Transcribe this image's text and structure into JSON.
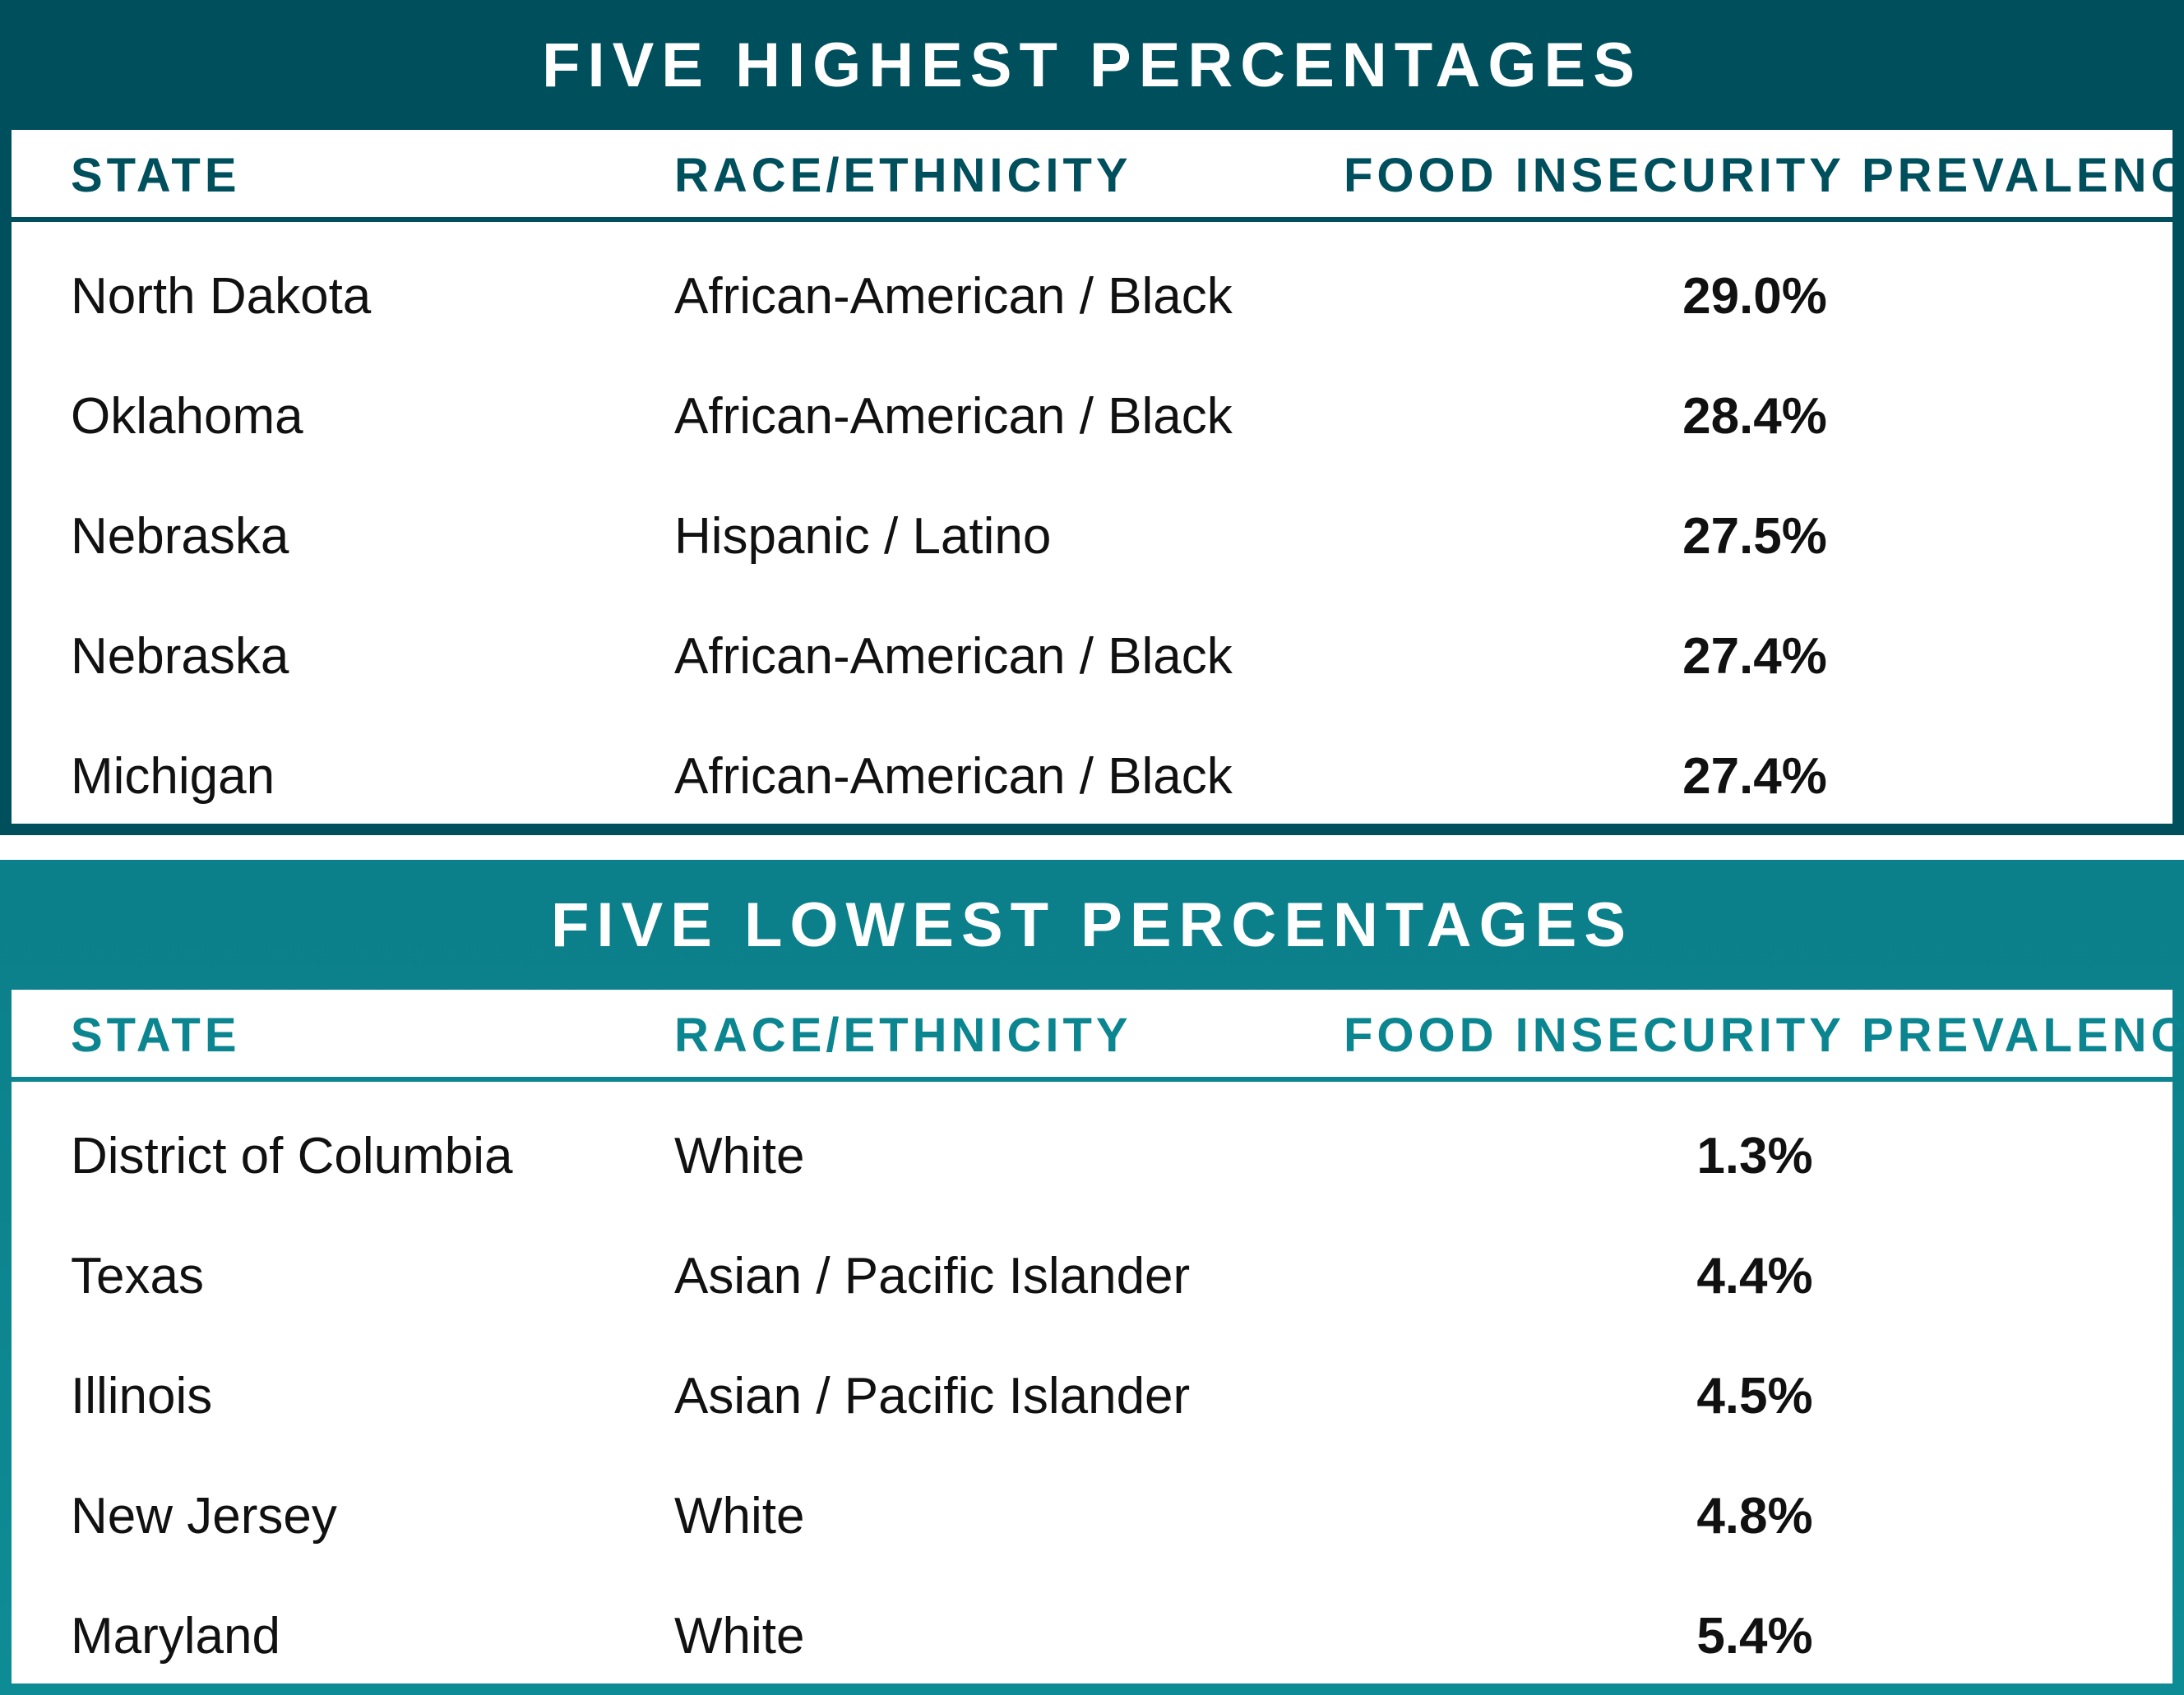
{
  "chart_data": [
    {
      "type": "table",
      "title": "FIVE HIGHEST PERCENTAGES",
      "columns": [
        "STATE",
        "RACE/ETHNICITY",
        "FOOD INSECURITY PREVALENCE"
      ],
      "rows": [
        {
          "state": "North Dakota",
          "race": "African-American / Black",
          "value": "29.0%"
        },
        {
          "state": "Oklahoma",
          "race": "African-American / Black",
          "value": "28.4%"
        },
        {
          "state": "Nebraska",
          "race": "Hispanic / Latino",
          "value": "27.5%"
        },
        {
          "state": "Nebraska",
          "race": "African-American / Black",
          "value": "27.4%"
        },
        {
          "state": "Michigan",
          "race": "African-American / Black",
          "value": "27.4%"
        }
      ]
    },
    {
      "type": "table",
      "title": "FIVE LOWEST PERCENTAGES",
      "columns": [
        "STATE",
        "RACE/ETHNICITY",
        "FOOD INSECURITY PREVALENCE"
      ],
      "rows": [
        {
          "state": "District of Columbia",
          "race": "White",
          "value": "1.3%"
        },
        {
          "state": "Texas",
          "race": "Asian / Pacific Islander",
          "value": "4.4%"
        },
        {
          "state": "Illinois",
          "race": "Asian / Pacific Islander",
          "value": "4.5%"
        },
        {
          "state": "New Jersey",
          "race": "White",
          "value": "4.8%"
        },
        {
          "state": "Maryland",
          "race": "White",
          "value": "5.4%"
        }
      ]
    }
  ],
  "colors": {
    "high_panel": "#004f5d",
    "low_panel": "#0b8590",
    "text": "#111111"
  }
}
